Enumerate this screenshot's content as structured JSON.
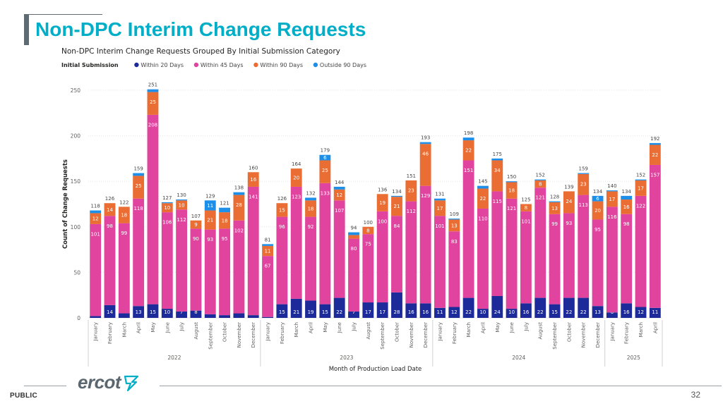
{
  "slide": {
    "title": "Non-DPC Interim Change Requests",
    "classification": "PUBLIC",
    "page_number": "32",
    "logo_text": "ercot",
    "title_color": "#00aec7"
  },
  "chart_data": {
    "type": "bar",
    "stacked": true,
    "title": "Non-DPC Interim Change Requests Grouped By Initial Submission Category",
    "legend_title": "Initial Submission",
    "legend_position": "top-left",
    "xlabel": "Month of Production Load Date",
    "ylabel": "Count of Change Requests",
    "ylim": [
      0,
      260
    ],
    "yticks": [
      0,
      50,
      100,
      150,
      200,
      250
    ],
    "grid": true,
    "categories": [
      "January",
      "February",
      "March",
      "April",
      "May",
      "June",
      "July",
      "August",
      "September",
      "October",
      "November",
      "December",
      "January",
      "February",
      "March",
      "April",
      "May",
      "June",
      "July",
      "August",
      "September",
      "October",
      "November",
      "December",
      "January",
      "February",
      "March",
      "April",
      "May",
      "June",
      "July",
      "August",
      "September",
      "October",
      "November",
      "December",
      "January",
      "February",
      "March",
      "April"
    ],
    "year_groups": [
      {
        "label": "2022",
        "start": 0,
        "count": 12
      },
      {
        "label": "2023",
        "start": 12,
        "count": 12
      },
      {
        "label": "2024",
        "start": 24,
        "count": 12
      },
      {
        "label": "2025",
        "start": 36,
        "count": 4
      }
    ],
    "series": [
      {
        "name": "Within 20 Days",
        "color": "#1c2b99",
        "values": [
          2,
          14,
          5,
          13,
          15,
          10,
          7,
          8,
          4,
          3,
          5,
          3,
          1,
          15,
          21,
          19,
          15,
          22,
          7,
          17,
          17,
          28,
          16,
          16,
          11,
          12,
          22,
          10,
          24,
          10,
          16,
          22,
          15,
          22,
          22,
          13,
          6,
          16,
          12,
          11
        ],
        "labels": [
          "",
          14,
          "",
          13,
          15,
          10,
          7,
          8,
          "",
          "",
          "",
          "",
          "",
          15,
          21,
          19,
          15,
          22,
          7,
          17,
          17,
          28,
          16,
          16,
          11,
          12,
          22,
          10,
          24,
          10,
          16,
          22,
          15,
          22,
          22,
          13,
          6,
          16,
          12,
          11
        ]
      },
      {
        "name": "Within 45 Days",
        "color": "#e0449e",
        "values": [
          101,
          98,
          99,
          118,
          208,
          106,
          112,
          90,
          93,
          95,
          102,
          141,
          67,
          96,
          123,
          92,
          133,
          107,
          80,
          75,
          100,
          84,
          112,
          129,
          101,
          83,
          151,
          110,
          115,
          121,
          101,
          121,
          99,
          93,
          113,
          95,
          116,
          98,
          122,
          157
        ],
        "labels": [
          101,
          98,
          99,
          118,
          208,
          106,
          112,
          90,
          93,
          95,
          102,
          141,
          67,
          96,
          123,
          92,
          133,
          107,
          80,
          75,
          100,
          84,
          112,
          129,
          101,
          83,
          151,
          110,
          115,
          121,
          101,
          121,
          99,
          93,
          113,
          95,
          116,
          98,
          122,
          157
        ]
      },
      {
        "name": "Within 90 Days",
        "color": "#ea6e33",
        "values": [
          12,
          14,
          18,
          25,
          25,
          10,
          10,
          9,
          21,
          18,
          28,
          16,
          11,
          15,
          20,
          18,
          25,
          12,
          4,
          8,
          19,
          21,
          23,
          46,
          17,
          13,
          22,
          22,
          34,
          18,
          8,
          8,
          13,
          24,
          23,
          20,
          17,
          16,
          17,
          22
        ],
        "labels": [
          12,
          14,
          18,
          25,
          25,
          10,
          10,
          9,
          21,
          18,
          28,
          16,
          11,
          15,
          20,
          18,
          25,
          12,
          "",
          8,
          19,
          21,
          23,
          46,
          17,
          13,
          22,
          22,
          34,
          18,
          8,
          8,
          13,
          24,
          23,
          20,
          17,
          16,
          17,
          22
        ]
      },
      {
        "name": "Outside 90 Days",
        "color": "#1e8fe8",
        "values": [
          3,
          0,
          0,
          3,
          3,
          1,
          1,
          0,
          11,
          5,
          3,
          0,
          2,
          0,
          0,
          3,
          6,
          3,
          3,
          0,
          0,
          1,
          0,
          2,
          2,
          1,
          3,
          3,
          2,
          1,
          0,
          1,
          1,
          0,
          1,
          6,
          1,
          4,
          1,
          2
        ],
        "labels": [
          "",
          "",
          "",
          "",
          "",
          "",
          "",
          "",
          11,
          "",
          "",
          "",
          "",
          "",
          "",
          "",
          6,
          "",
          "",
          "",
          "",
          "",
          "",
          "",
          "",
          "",
          "",
          "",
          "",
          "",
          "",
          "",
          "",
          "",
          "",
          6,
          "",
          "",
          "",
          ""
        ]
      }
    ],
    "totals": [
      118,
      126,
      122,
      159,
      251,
      127,
      130,
      107,
      129,
      121,
      138,
      160,
      81,
      126,
      164,
      132,
      179,
      144,
      94,
      100,
      136,
      134,
      151,
      193,
      131,
      109,
      198,
      145,
      175,
      150,
      125,
      152,
      128,
      139,
      159,
      134,
      140,
      134,
      152,
      192
    ]
  }
}
